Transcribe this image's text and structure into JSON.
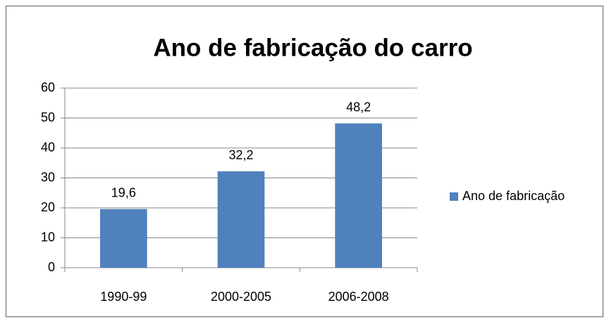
{
  "chart_data": {
    "type": "bar",
    "title": "Ano de fabricação do carro",
    "categories": [
      "1990-99",
      "2000-2005",
      "2006-2008"
    ],
    "series": [
      {
        "name": "Ano de fabricação",
        "color": "#4f81bd",
        "values": [
          19.6,
          32.2,
          48.2
        ],
        "value_labels": [
          "19,6",
          "32,2",
          "48,2"
        ]
      }
    ],
    "ylim": [
      0,
      60
    ],
    "yticks": [
      0,
      10,
      20,
      30,
      40,
      50,
      60
    ],
    "grid": true,
    "legend": "right"
  }
}
